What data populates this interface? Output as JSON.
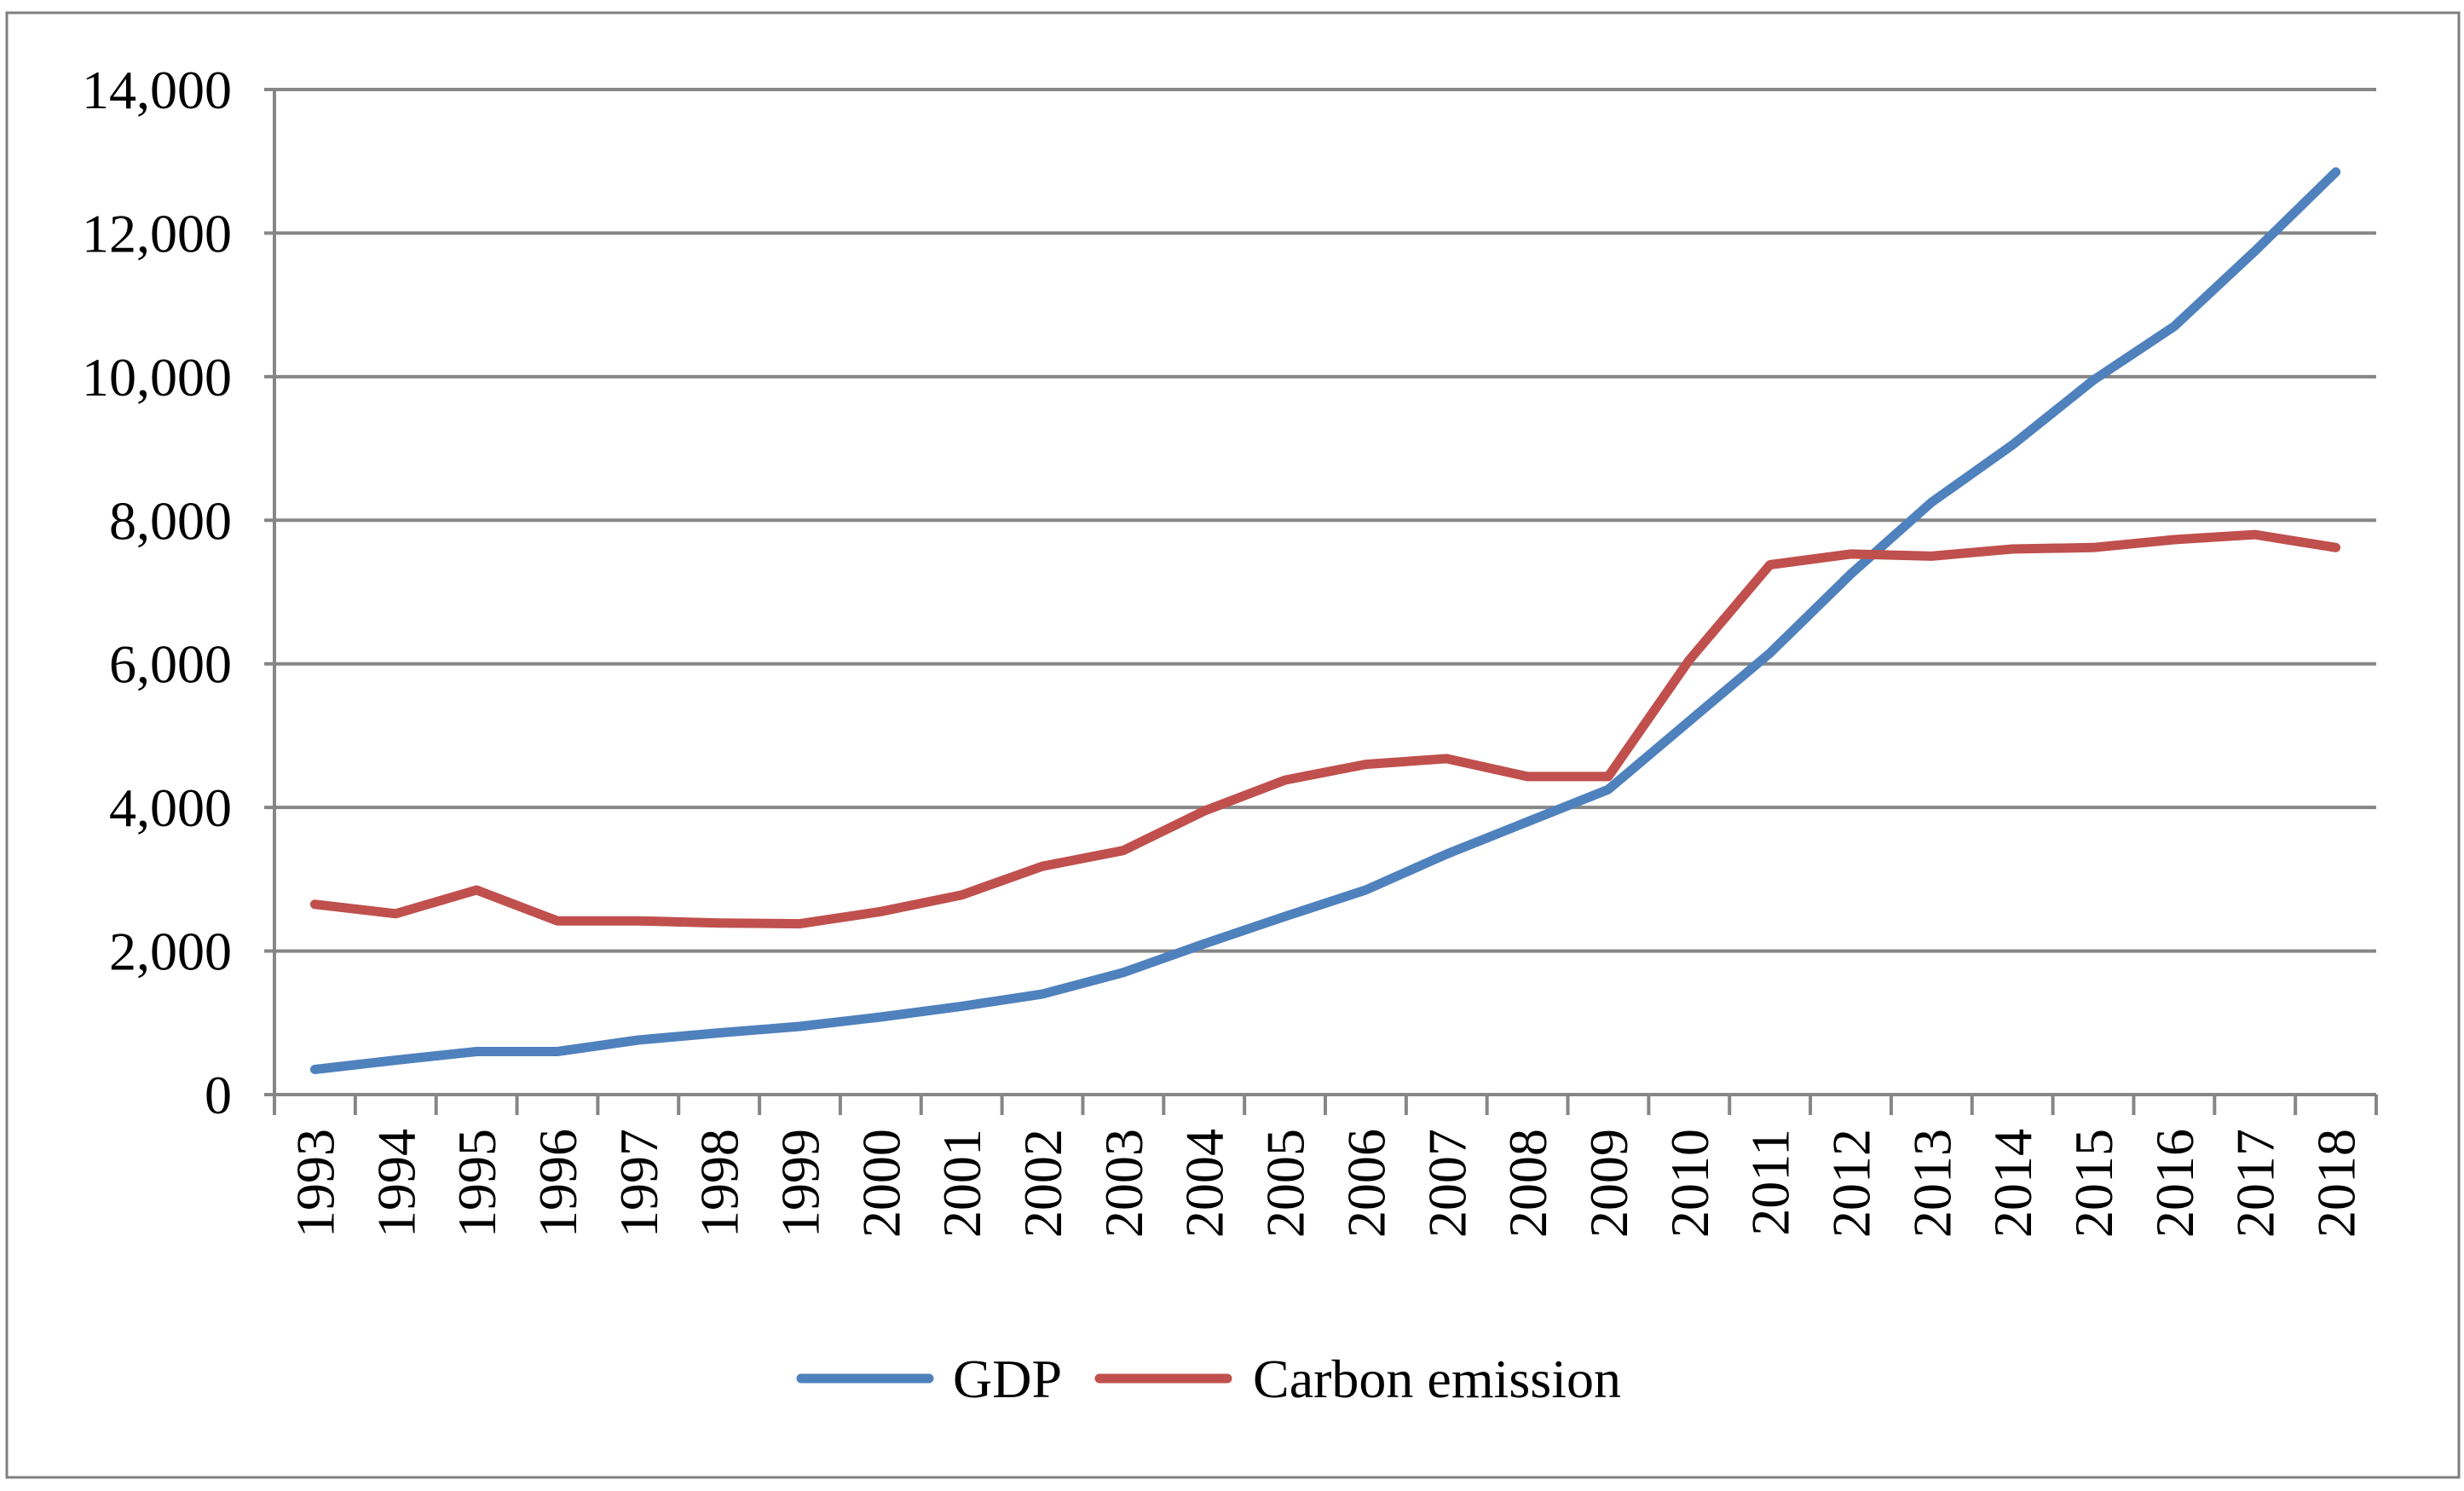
{
  "chart_data": {
    "type": "line",
    "title": "",
    "xlabel": "",
    "ylabel": "",
    "categories": [
      "1993",
      "1994",
      "1995",
      "1996",
      "1997",
      "1998",
      "1999",
      "2000",
      "2001",
      "2002",
      "2003",
      "2004",
      "2005",
      "2006",
      "2007",
      "2008",
      "2009",
      "2010",
      "2011",
      "2012",
      "2013",
      "2014",
      "2015",
      "2016",
      "2017",
      "2018"
    ],
    "ylim": [
      0,
      14000
    ],
    "yticks": [
      0,
      2000,
      4000,
      6000,
      8000,
      10000,
      12000,
      14000
    ],
    "ytick_labels": [
      "0",
      "2,000",
      "4,000",
      "6,000",
      "8,000",
      "10,000",
      "12,000",
      "14,000"
    ],
    "grid": true,
    "legend_position": "bottom",
    "series": [
      {
        "name": "GDP",
        "color": "#4F81BD",
        "values": [
          350,
          480,
          600,
          600,
          760,
          860,
          950,
          1080,
          1230,
          1400,
          1700,
          2100,
          2480,
          2850,
          3350,
          3800,
          4250,
          5200,
          6150,
          7250,
          8250,
          9050,
          9950,
          10700,
          11750,
          12850
        ]
      },
      {
        "name": "Carbon emission",
        "color": "#C0504D",
        "values": [
          2650,
          2520,
          2850,
          2420,
          2420,
          2390,
          2380,
          2550,
          2780,
          3180,
          3400,
          3950,
          4380,
          4600,
          4680,
          4430,
          4430,
          6050,
          7380,
          7530,
          7500,
          7600,
          7620,
          7730,
          7800,
          7620
        ]
      }
    ]
  }
}
